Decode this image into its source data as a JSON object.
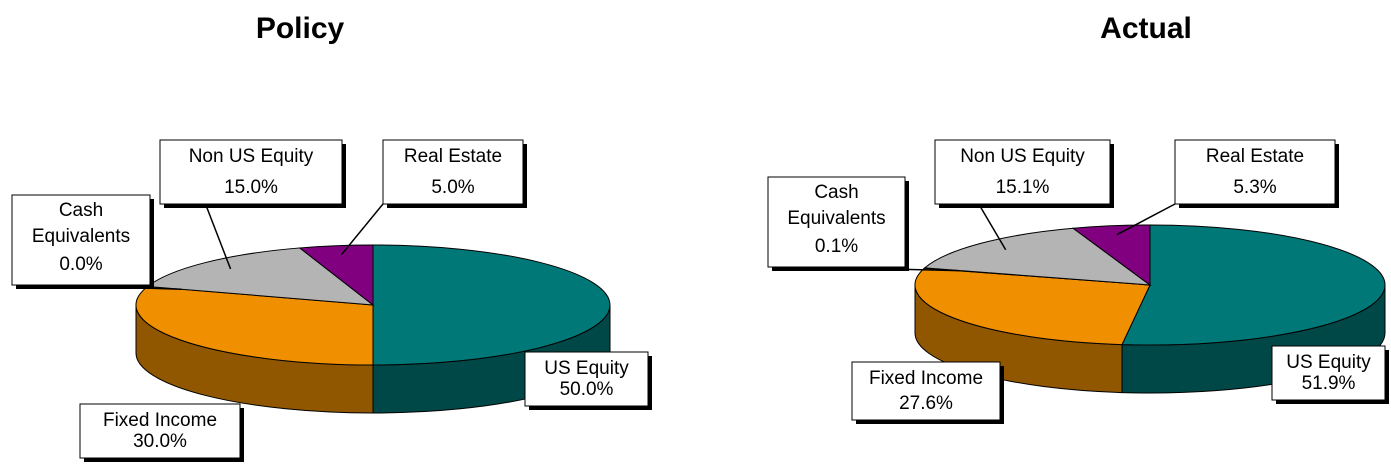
{
  "chart_data": [
    {
      "type": "pie",
      "title": "Policy",
      "categories": [
        "US Equity",
        "Fixed Income",
        "Cash Equivalents",
        "Non US Equity",
        "Real Estate"
      ],
      "values": [
        50.0,
        30.0,
        0.0,
        15.0,
        5.0
      ],
      "value_labels": [
        "50.0%",
        "30.0%",
        "0.0%",
        "15.0%",
        "5.0%"
      ],
      "colors": [
        "#007878",
        "#f09000",
        "#3050c0",
        "#b4b4b4",
        "#800080"
      ]
    },
    {
      "type": "pie",
      "title": "Actual",
      "categories": [
        "US Equity",
        "Fixed Income",
        "Cash Equivalents",
        "Non US Equity",
        "Real Estate"
      ],
      "values": [
        51.9,
        27.6,
        0.1,
        15.1,
        5.3
      ],
      "value_labels": [
        "51.9%",
        "27.6%",
        "0.1%",
        "15.1%",
        "5.3%"
      ],
      "colors": [
        "#007878",
        "#f09000",
        "#3050c0",
        "#b4b4b4",
        "#800080"
      ]
    }
  ]
}
